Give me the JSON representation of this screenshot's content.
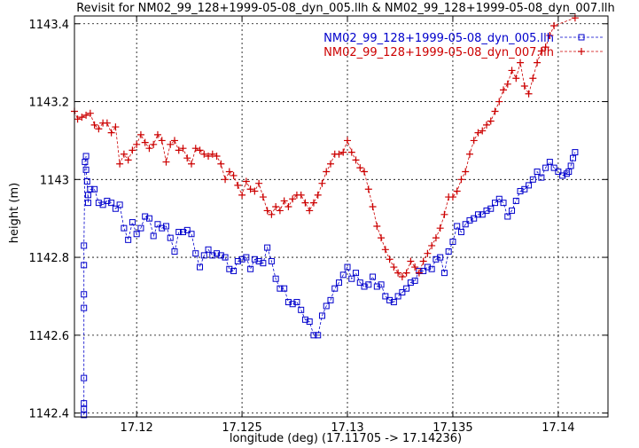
{
  "chart_data": {
    "type": "line",
    "title": "Revisit for NM02_99_128+1999-05-08_dyn_005.llh & NM02_99_128+1999-05-08_dyn_007.llh",
    "xlabel": "longitude (deg) (17.11705 -> 17.14236)",
    "ylabel": "height (m)",
    "xlim": [
      17.11705,
      17.14236
    ],
    "ylim": [
      1142.39,
      1143.42
    ],
    "xticks": [
      17.12,
      17.125,
      17.13,
      17.135,
      17.14
    ],
    "xtick_labels": [
      "17.12",
      "17.125",
      "17.13",
      "17.135",
      "17.14"
    ],
    "yticks": [
      1142.4,
      1142.6,
      1142.8,
      1143.0,
      1143.2,
      1143.4
    ],
    "ytick_labels": [
      "1142.4",
      "1142.6",
      "1142.8",
      "1143",
      "1143.2",
      "1143.4"
    ],
    "grid": true,
    "legend_position": "top-right",
    "series": [
      {
        "name": "NM02_99_128+1999-05-08_dyn_005.llh",
        "color": "#0000cc",
        "marker": "square",
        "points": [
          [
            17.1175,
            1142.385
          ],
          [
            17.1175,
            1142.395
          ],
          [
            17.1175,
            1142.41
          ],
          [
            17.1175,
            1142.425
          ],
          [
            17.1175,
            1142.49
          ],
          [
            17.1175,
            1142.67
          ],
          [
            17.1175,
            1142.705
          ],
          [
            17.1175,
            1142.78
          ],
          [
            17.1175,
            1142.83
          ],
          [
            17.11755,
            1143.045
          ],
          [
            17.1176,
            1143.06
          ],
          [
            17.1176,
            1143.025
          ],
          [
            17.11765,
            1142.995
          ],
          [
            17.1177,
            1142.94
          ],
          [
            17.1177,
            1142.96
          ],
          [
            17.1178,
            1142.975
          ],
          [
            17.118,
            1142.975
          ],
          [
            17.1182,
            1142.94
          ],
          [
            17.1184,
            1142.935
          ],
          [
            17.1186,
            1142.945
          ],
          [
            17.1188,
            1142.94
          ],
          [
            17.119,
            1142.925
          ],
          [
            17.1192,
            1142.935
          ],
          [
            17.1194,
            1142.875
          ],
          [
            17.1196,
            1142.845
          ],
          [
            17.1198,
            1142.89
          ],
          [
            17.12,
            1142.86
          ],
          [
            17.1202,
            1142.875
          ],
          [
            17.1204,
            1142.905
          ],
          [
            17.1206,
            1142.9
          ],
          [
            17.1208,
            1142.855
          ],
          [
            17.121,
            1142.885
          ],
          [
            17.1212,
            1142.875
          ],
          [
            17.1214,
            1142.88
          ],
          [
            17.1216,
            1142.85
          ],
          [
            17.1218,
            1142.815
          ],
          [
            17.122,
            1142.865
          ],
          [
            17.1222,
            1142.865
          ],
          [
            17.1224,
            1142.87
          ],
          [
            17.1226,
            1142.86
          ],
          [
            17.1228,
            1142.81
          ],
          [
            17.123,
            1142.775
          ],
          [
            17.1232,
            1142.805
          ],
          [
            17.1234,
            1142.82
          ],
          [
            17.1236,
            1142.805
          ],
          [
            17.1238,
            1142.81
          ],
          [
            17.124,
            1142.805
          ],
          [
            17.1242,
            1142.8
          ],
          [
            17.1244,
            1142.77
          ],
          [
            17.1246,
            1142.765
          ],
          [
            17.1248,
            1142.79
          ],
          [
            17.125,
            1142.795
          ],
          [
            17.1252,
            1142.8
          ],
          [
            17.1254,
            1142.77
          ],
          [
            17.1256,
            1142.795
          ],
          [
            17.1258,
            1142.79
          ],
          [
            17.126,
            1142.785
          ],
          [
            17.1262,
            1142.825
          ],
          [
            17.1264,
            1142.79
          ],
          [
            17.1266,
            1142.745
          ],
          [
            17.1268,
            1142.72
          ],
          [
            17.127,
            1142.72
          ],
          [
            17.1272,
            1142.685
          ],
          [
            17.1274,
            1142.68
          ],
          [
            17.1276,
            1142.685
          ],
          [
            17.1278,
            1142.665
          ],
          [
            17.128,
            1142.64
          ],
          [
            17.1282,
            1142.635
          ],
          [
            17.1284,
            1142.6
          ],
          [
            17.1286,
            1142.6
          ],
          [
            17.1288,
            1142.65
          ],
          [
            17.129,
            1142.675
          ],
          [
            17.1292,
            1142.69
          ],
          [
            17.1294,
            1142.72
          ],
          [
            17.1296,
            1142.735
          ],
          [
            17.1298,
            1142.755
          ],
          [
            17.13,
            1142.775
          ],
          [
            17.1302,
            1142.745
          ],
          [
            17.1304,
            1142.76
          ],
          [
            17.1306,
            1142.735
          ],
          [
            17.1308,
            1142.725
          ],
          [
            17.131,
            1142.73
          ],
          [
            17.1312,
            1142.75
          ],
          [
            17.1314,
            1142.725
          ],
          [
            17.1316,
            1142.73
          ],
          [
            17.1318,
            1142.7
          ],
          [
            17.132,
            1142.69
          ],
          [
            17.1322,
            1142.685
          ],
          [
            17.1324,
            1142.7
          ],
          [
            17.1326,
            1142.71
          ],
          [
            17.1328,
            1142.72
          ],
          [
            17.133,
            1142.735
          ],
          [
            17.1332,
            1142.74
          ],
          [
            17.1334,
            1142.765
          ],
          [
            17.1336,
            1142.765
          ],
          [
            17.1338,
            1142.775
          ],
          [
            17.134,
            1142.77
          ],
          [
            17.1342,
            1142.795
          ],
          [
            17.1344,
            1142.8
          ],
          [
            17.1346,
            1142.76
          ],
          [
            17.1348,
            1142.815
          ],
          [
            17.135,
            1142.84
          ],
          [
            17.1352,
            1142.88
          ],
          [
            17.1354,
            1142.865
          ],
          [
            17.1356,
            1142.885
          ],
          [
            17.1358,
            1142.895
          ],
          [
            17.136,
            1142.9
          ],
          [
            17.1362,
            1142.91
          ],
          [
            17.1364,
            1142.91
          ],
          [
            17.1366,
            1142.92
          ],
          [
            17.1368,
            1142.925
          ],
          [
            17.137,
            1142.94
          ],
          [
            17.1372,
            1142.95
          ],
          [
            17.1374,
            1142.94
          ],
          [
            17.1376,
            1142.905
          ],
          [
            17.1378,
            1142.92
          ],
          [
            17.138,
            1142.945
          ],
          [
            17.1382,
            1142.97
          ],
          [
            17.1384,
            1142.975
          ],
          [
            17.1386,
            1142.985
          ],
          [
            17.1388,
            1143.0
          ],
          [
            17.139,
            1143.02
          ],
          [
            17.1392,
            1143.005
          ],
          [
            17.1394,
            1143.03
          ],
          [
            17.1396,
            1143.045
          ],
          [
            17.1398,
            1143.03
          ],
          [
            17.14,
            1143.02
          ],
          [
            17.1402,
            1143.01
          ],
          [
            17.1404,
            1143.015
          ],
          [
            17.1405,
            1143.02
          ],
          [
            17.1406,
            1143.035
          ],
          [
            17.1407,
            1143.055
          ],
          [
            17.1408,
            1143.07
          ]
        ]
      },
      {
        "name": "NM02_99_128+1999-05-08_dyn_007.llh",
        "color": "#cc0000",
        "marker": "plus",
        "points": [
          [
            17.11705,
            1143.175
          ],
          [
            17.1172,
            1143.155
          ],
          [
            17.1174,
            1143.16
          ],
          [
            17.1176,
            1143.165
          ],
          [
            17.1178,
            1143.17
          ],
          [
            17.118,
            1143.14
          ],
          [
            17.1182,
            1143.13
          ],
          [
            17.1184,
            1143.145
          ],
          [
            17.1186,
            1143.145
          ],
          [
            17.1188,
            1143.12
          ],
          [
            17.119,
            1143.135
          ],
          [
            17.1192,
            1143.04
          ],
          [
            17.1194,
            1143.065
          ],
          [
            17.1196,
            1143.05
          ],
          [
            17.1198,
            1143.075
          ],
          [
            17.12,
            1143.09
          ],
          [
            17.1202,
            1143.115
          ],
          [
            17.1204,
            1143.095
          ],
          [
            17.1206,
            1143.08
          ],
          [
            17.1208,
            1143.09
          ],
          [
            17.121,
            1143.115
          ],
          [
            17.1212,
            1143.1
          ],
          [
            17.1214,
            1143.045
          ],
          [
            17.1216,
            1143.09
          ],
          [
            17.1218,
            1143.1
          ],
          [
            17.122,
            1143.075
          ],
          [
            17.1222,
            1143.08
          ],
          [
            17.1224,
            1143.055
          ],
          [
            17.1226,
            1143.04
          ],
          [
            17.1228,
            1143.08
          ],
          [
            17.123,
            1143.075
          ],
          [
            17.1232,
            1143.065
          ],
          [
            17.1234,
            1143.06
          ],
          [
            17.1236,
            1143.065
          ],
          [
            17.1238,
            1143.06
          ],
          [
            17.124,
            1143.04
          ],
          [
            17.1242,
            1143.0
          ],
          [
            17.1244,
            1143.02
          ],
          [
            17.1246,
            1143.01
          ],
          [
            17.1248,
            1142.985
          ],
          [
            17.125,
            1142.96
          ],
          [
            17.1252,
            1142.995
          ],
          [
            17.1254,
            1142.975
          ],
          [
            17.1256,
            1142.97
          ],
          [
            17.1258,
            1142.99
          ],
          [
            17.126,
            1142.955
          ],
          [
            17.1262,
            1142.92
          ],
          [
            17.1264,
            1142.91
          ],
          [
            17.1266,
            1142.93
          ],
          [
            17.1268,
            1142.92
          ],
          [
            17.127,
            1142.945
          ],
          [
            17.1272,
            1142.93
          ],
          [
            17.1274,
            1142.95
          ],
          [
            17.1276,
            1142.96
          ],
          [
            17.1278,
            1142.96
          ],
          [
            17.128,
            1142.94
          ],
          [
            17.1282,
            1142.92
          ],
          [
            17.1284,
            1142.94
          ],
          [
            17.1286,
            1142.96
          ],
          [
            17.1288,
            1142.99
          ],
          [
            17.129,
            1143.02
          ],
          [
            17.1292,
            1143.04
          ],
          [
            17.1294,
            1143.065
          ],
          [
            17.1296,
            1143.065
          ],
          [
            17.1298,
            1143.07
          ],
          [
            17.13,
            1143.1
          ],
          [
            17.1302,
            1143.07
          ],
          [
            17.1304,
            1143.05
          ],
          [
            17.1306,
            1143.03
          ],
          [
            17.1308,
            1143.02
          ],
          [
            17.131,
            1142.975
          ],
          [
            17.1312,
            1142.93
          ],
          [
            17.1314,
            1142.88
          ],
          [
            17.1316,
            1142.85
          ],
          [
            17.1318,
            1142.82
          ],
          [
            17.132,
            1142.795
          ],
          [
            17.1322,
            1142.775
          ],
          [
            17.1324,
            1142.76
          ],
          [
            17.1326,
            1142.75
          ],
          [
            17.1328,
            1142.76
          ],
          [
            17.133,
            1142.79
          ],
          [
            17.1332,
            1142.775
          ],
          [
            17.1334,
            1142.76
          ],
          [
            17.1336,
            1142.79
          ],
          [
            17.1338,
            1142.81
          ],
          [
            17.134,
            1142.83
          ],
          [
            17.1342,
            1142.85
          ],
          [
            17.1344,
            1142.875
          ],
          [
            17.1346,
            1142.91
          ],
          [
            17.1348,
            1142.955
          ],
          [
            17.135,
            1142.955
          ],
          [
            17.1352,
            1142.97
          ],
          [
            17.1354,
            1143.0
          ],
          [
            17.1356,
            1143.02
          ],
          [
            17.1358,
            1143.065
          ],
          [
            17.136,
            1143.1
          ],
          [
            17.1362,
            1143.12
          ],
          [
            17.1364,
            1143.125
          ],
          [
            17.1366,
            1143.14
          ],
          [
            17.1368,
            1143.15
          ],
          [
            17.137,
            1143.175
          ],
          [
            17.1372,
            1143.2
          ],
          [
            17.1374,
            1143.23
          ],
          [
            17.1376,
            1143.245
          ],
          [
            17.1378,
            1143.28
          ],
          [
            17.138,
            1143.26
          ],
          [
            17.1382,
            1143.3
          ],
          [
            17.1384,
            1143.24
          ],
          [
            17.1386,
            1143.22
          ],
          [
            17.1388,
            1143.26
          ],
          [
            17.139,
            1143.3
          ],
          [
            17.1392,
            1143.33
          ],
          [
            17.1394,
            1143.34
          ],
          [
            17.1396,
            1143.37
          ],
          [
            17.1398,
            1143.395
          ],
          [
            17.1408,
            1143.415
          ]
        ]
      }
    ]
  }
}
